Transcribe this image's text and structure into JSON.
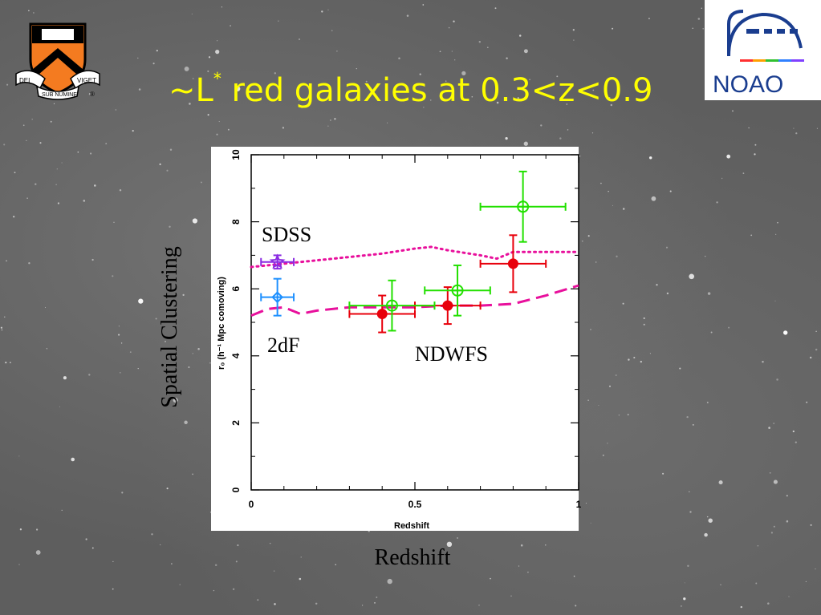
{
  "slide": {
    "title_main": "~L",
    "title_sup": "*",
    "title_rest": " red galaxies at 0.3<z<0.9",
    "side_label": "Spatial Clustering",
    "bottom_label": "Redshift",
    "label_sdss": "SDSS",
    "label_2df": "2dF",
    "label_ndwfs": "NDWFS",
    "noao_logo_text": "NOAO",
    "princeton_motto_left": "DEI",
    "princeton_motto_right": "VIGET",
    "princeton_motto_bottom": "SUB NUMINE",
    "registered_mark": "®"
  },
  "colors": {
    "title": "#ffff00",
    "red_points": "#e8000b",
    "green_points": "#22e000",
    "magenta_lines": "#e8109c",
    "sdss": "#8a2be2",
    "twodf": "#1e90ff",
    "noao_blue": "#1a3d8f",
    "princeton_orange": "#f47b20"
  },
  "chart_data": {
    "type": "scatter",
    "xlabel": "Redshift",
    "ylabel": "r₀ (h⁻¹ Mpc comoving)",
    "xlim": [
      0,
      1
    ],
    "ylim": [
      0,
      10
    ],
    "x_ticks": [
      "0",
      "0.5",
      "1"
    ],
    "y_ticks": [
      "0",
      "2",
      "4",
      "6",
      "8",
      "10"
    ],
    "series": [
      {
        "name": "SDSS",
        "marker": "star",
        "points": [
          {
            "x": 0.08,
            "y": 6.8,
            "xerr": 0.05,
            "yerr": 0.2
          }
        ]
      },
      {
        "name": "2dF",
        "marker": "diamond",
        "points": [
          {
            "x": 0.08,
            "y": 5.75,
            "xerr": 0.05,
            "yerr": 0.55
          }
        ]
      },
      {
        "name": "NDWFS",
        "marker": "filled-circle",
        "points": [
          {
            "x": 0.4,
            "y": 5.25,
            "xerr": 0.1,
            "yerr": 0.55
          },
          {
            "x": 0.6,
            "y": 5.5,
            "xerr": 0.1,
            "yerr": 0.55
          },
          {
            "x": 0.8,
            "y": 6.75,
            "xerr": 0.1,
            "yerr": 0.85
          }
        ]
      },
      {
        "name": "NDWFS",
        "marker": "open-circle",
        "points": [
          {
            "x": 0.43,
            "y": 5.5,
            "xerr": 0.13,
            "yerr": 0.75
          },
          {
            "x": 0.63,
            "y": 5.95,
            "xerr": 0.1,
            "yerr": 0.75
          },
          {
            "x": 0.83,
            "y": 8.45,
            "xerr": 0.13,
            "yerr": 1.05
          }
        ]
      }
    ],
    "lines": [
      {
        "style": "dotted",
        "points": [
          [
            0.0,
            6.65
          ],
          [
            0.1,
            6.75
          ],
          [
            0.2,
            6.85
          ],
          [
            0.3,
            6.95
          ],
          [
            0.4,
            7.05
          ],
          [
            0.5,
            7.2
          ],
          [
            0.55,
            7.25
          ],
          [
            0.6,
            7.15
          ],
          [
            0.7,
            7.0
          ],
          [
            0.75,
            6.9
          ],
          [
            0.8,
            7.1
          ],
          [
            0.9,
            7.1
          ],
          [
            1.0,
            7.1
          ]
        ]
      },
      {
        "style": "dashed",
        "points": [
          [
            0.0,
            5.2
          ],
          [
            0.05,
            5.4
          ],
          [
            0.1,
            5.45
          ],
          [
            0.15,
            5.25
          ],
          [
            0.2,
            5.35
          ],
          [
            0.3,
            5.45
          ],
          [
            0.4,
            5.45
          ],
          [
            0.5,
            5.45
          ],
          [
            0.6,
            5.5
          ],
          [
            0.7,
            5.5
          ],
          [
            0.8,
            5.55
          ],
          [
            0.9,
            5.8
          ],
          [
            1.0,
            6.1
          ]
        ]
      }
    ]
  }
}
